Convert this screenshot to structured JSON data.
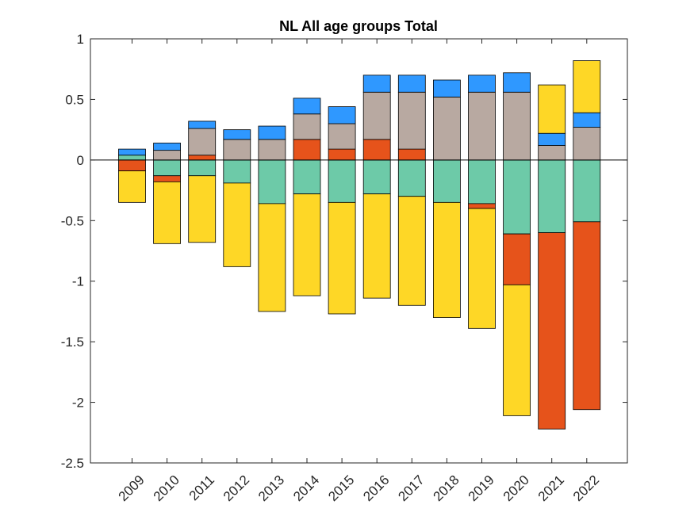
{
  "chart_data": {
    "type": "bar",
    "stacked": true,
    "title": "NL  All age groups  Total",
    "xlabel": "",
    "ylabel": "",
    "ylim": [
      -2.5,
      1
    ],
    "yticks": [
      "1",
      "0.5",
      "0",
      "-0.5",
      "-1",
      "-1.5",
      "-2",
      "-2.5"
    ],
    "ytick_values": [
      1,
      0.5,
      0,
      -0.5,
      -1,
      -1.5,
      -2,
      -2.5
    ],
    "categories": [
      "2009",
      "2010",
      "2011",
      "2012",
      "2013",
      "2014",
      "2015",
      "2016",
      "2017",
      "2018",
      "2019",
      "2020",
      "2021",
      "2022"
    ],
    "grid": false,
    "zero_line": true,
    "series": [
      {
        "color": "#6dcaa8",
        "values": [
          0.04,
          -0.13,
          -0.13,
          -0.19,
          -0.36,
          -0.28,
          -0.35,
          -0.28,
          -0.3,
          -0.35,
          -0.36,
          -0.61,
          -0.6,
          -0.51
        ]
      },
      {
        "color": "#e6531b",
        "values": [
          -0.09,
          -0.05,
          0.04,
          0,
          0,
          0.17,
          0.09,
          0.17,
          0.09,
          0,
          -0.04,
          -0.42,
          -1.62,
          -1.55
        ]
      },
      {
        "color": "#b8a9a1",
        "values": [
          0,
          0.08,
          0.22,
          0.17,
          0.17,
          0.21,
          0.21,
          0.39,
          0.47,
          0.52,
          0.56,
          0.56,
          0.12,
          0.27
        ]
      },
      {
        "color": "#2f98ff",
        "values": [
          0.05,
          0.06,
          0.06,
          0.08,
          0.11,
          0.13,
          0.14,
          0.14,
          0.14,
          0.14,
          0.14,
          0.16,
          0.1,
          0.12
        ]
      },
      {
        "color": "#fed726",
        "values": [
          -0.26,
          -0.51,
          -0.55,
          -0.69,
          -0.89,
          -0.84,
          -0.92,
          -0.86,
          -0.9,
          -0.95,
          -0.99,
          -1.08,
          0.4,
          0.43
        ]
      }
    ]
  }
}
